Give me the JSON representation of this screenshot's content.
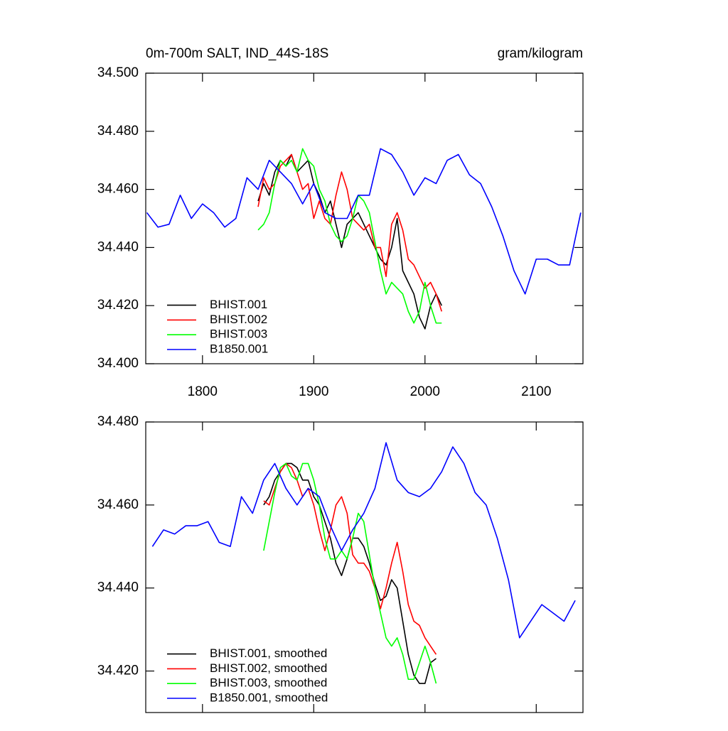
{
  "chart_data": [
    {
      "type": "line",
      "title": "0m-700m SALT, IND_44S-18S",
      "units": "gram/kilogram",
      "xlim": [
        1749,
        2142
      ],
      "xticks": [
        1800,
        1900,
        2000,
        2100
      ],
      "show_xtick_labels": true,
      "ylim": [
        34.4,
        34.5
      ],
      "yticks": [
        {
          "value": 34.4,
          "label": "34.400"
        },
        {
          "value": 34.42,
          "label": "34.420"
        },
        {
          "value": 34.44,
          "label": "34.440"
        },
        {
          "value": 34.46,
          "label": "34.460"
        },
        {
          "value": 34.48,
          "label": "34.480"
        },
        {
          "value": 34.5,
          "label": "34.500"
        }
      ],
      "legend": "bottom left",
      "series": [
        {
          "name": "BHIST.001",
          "color": "#000000",
          "x": [
            1850,
            1855,
            1860,
            1865,
            1870,
            1875,
            1880,
            1885,
            1890,
            1895,
            1900,
            1905,
            1910,
            1915,
            1920,
            1925,
            1930,
            1935,
            1940,
            1945,
            1950,
            1955,
            1960,
            1965,
            1970,
            1975,
            1980,
            1985,
            1990,
            1995,
            2000,
            2005,
            2010,
            2015
          ],
          "values": [
            34.456,
            34.462,
            34.458,
            34.466,
            34.47,
            34.468,
            34.472,
            34.466,
            34.468,
            34.47,
            34.462,
            34.458,
            34.452,
            34.456,
            34.448,
            34.44,
            34.448,
            34.45,
            34.452,
            34.448,
            34.444,
            34.44,
            34.436,
            34.434,
            34.44,
            34.45,
            34.432,
            34.428,
            34.424,
            34.416,
            34.412,
            34.42,
            34.424,
            34.42
          ]
        },
        {
          "name": "BHIST.002",
          "color": "#ff0000",
          "x": [
            1850,
            1855,
            1860,
            1865,
            1870,
            1875,
            1880,
            1885,
            1890,
            1895,
            1900,
            1905,
            1910,
            1915,
            1920,
            1925,
            1930,
            1935,
            1940,
            1945,
            1950,
            1955,
            1960,
            1965,
            1970,
            1975,
            1980,
            1985,
            1990,
            1995,
            2000,
            2005,
            2010,
            2015
          ],
          "values": [
            34.454,
            34.464,
            34.46,
            34.462,
            34.468,
            34.47,
            34.472,
            34.466,
            34.46,
            34.462,
            34.45,
            34.456,
            34.45,
            34.448,
            34.458,
            34.466,
            34.46,
            34.45,
            34.448,
            34.446,
            34.448,
            34.44,
            34.44,
            34.43,
            34.448,
            34.452,
            34.446,
            34.436,
            34.434,
            34.43,
            34.426,
            34.428,
            34.424,
            34.418
          ]
        },
        {
          "name": "BHIST.003",
          "color": "#00ff00",
          "x": [
            1850,
            1855,
            1860,
            1865,
            1870,
            1875,
            1880,
            1885,
            1890,
            1895,
            1900,
            1905,
            1910,
            1915,
            1920,
            1925,
            1930,
            1935,
            1940,
            1945,
            1950,
            1955,
            1960,
            1965,
            1970,
            1975,
            1980,
            1985,
            1990,
            1995,
            2000,
            2005,
            2010,
            2015
          ],
          "values": [
            34.446,
            34.448,
            34.452,
            34.462,
            34.47,
            34.468,
            34.47,
            34.466,
            34.474,
            34.47,
            34.468,
            34.46,
            34.456,
            34.448,
            34.444,
            34.442,
            34.444,
            34.45,
            34.458,
            34.456,
            34.452,
            34.442,
            34.432,
            34.424,
            34.428,
            34.426,
            34.424,
            34.418,
            34.414,
            34.418,
            34.428,
            34.42,
            34.414,
            34.414
          ]
        },
        {
          "name": "B1850.001",
          "color": "#0000ff",
          "x": [
            1750,
            1760,
            1770,
            1780,
            1790,
            1800,
            1810,
            1820,
            1830,
            1840,
            1850,
            1860,
            1870,
            1880,
            1890,
            1900,
            1910,
            1920,
            1930,
            1940,
            1950,
            1960,
            1970,
            1980,
            1990,
            2000,
            2010,
            2020,
            2030,
            2040,
            2050,
            2060,
            2070,
            2080,
            2090,
            2100,
            2110,
            2120,
            2130,
            2140
          ],
          "values": [
            34.452,
            34.447,
            34.448,
            34.458,
            34.45,
            34.455,
            34.452,
            34.447,
            34.45,
            34.464,
            34.46,
            34.47,
            34.466,
            34.462,
            34.455,
            34.462,
            34.452,
            34.45,
            34.45,
            34.458,
            34.458,
            34.474,
            34.472,
            34.466,
            34.458,
            34.464,
            34.462,
            34.47,
            34.472,
            34.465,
            34.462,
            34.454,
            34.444,
            34.432,
            34.424,
            34.436,
            34.436,
            34.434,
            34.434,
            34.452
          ]
        }
      ]
    },
    {
      "type": "line",
      "xlim": [
        1749,
        2142
      ],
      "xticks": [
        1800,
        1900,
        2000,
        2100
      ],
      "show_xtick_labels": false,
      "ylim": [
        34.41,
        34.48
      ],
      "yticks": [
        {
          "value": 34.42,
          "label": "34.420"
        },
        {
          "value": 34.44,
          "label": "34.440"
        },
        {
          "value": 34.46,
          "label": "34.460"
        },
        {
          "value": 34.48,
          "label": "34.480"
        }
      ],
      "legend": "bottom left",
      "series": [
        {
          "name": "BHIST.001, smoothed",
          "color": "#000000",
          "x": [
            1855,
            1860,
            1865,
            1870,
            1875,
            1880,
            1885,
            1890,
            1895,
            1900,
            1905,
            1910,
            1915,
            1920,
            1925,
            1930,
            1935,
            1940,
            1945,
            1950,
            1955,
            1960,
            1965,
            1970,
            1975,
            1980,
            1985,
            1990,
            1995,
            2000,
            2005,
            2010
          ],
          "values": [
            34.46,
            34.462,
            34.466,
            34.468,
            34.47,
            34.47,
            34.469,
            34.466,
            34.466,
            34.462,
            34.46,
            34.456,
            34.452,
            34.446,
            34.443,
            34.447,
            34.452,
            34.452,
            34.45,
            34.446,
            34.441,
            34.437,
            34.438,
            34.442,
            34.44,
            34.432,
            34.424,
            34.419,
            34.417,
            34.417,
            34.422,
            34.423
          ]
        },
        {
          "name": "BHIST.002, smoothed",
          "color": "#ff0000",
          "x": [
            1855,
            1860,
            1865,
            1870,
            1875,
            1880,
            1885,
            1890,
            1895,
            1900,
            1905,
            1910,
            1915,
            1920,
            1925,
            1930,
            1935,
            1940,
            1945,
            1950,
            1955,
            1960,
            1965,
            1970,
            1975,
            1980,
            1985,
            1990,
            1995,
            2000,
            2005,
            2010
          ],
          "values": [
            34.461,
            34.46,
            34.464,
            34.468,
            34.47,
            34.469,
            34.466,
            34.462,
            34.464,
            34.46,
            34.454,
            34.449,
            34.454,
            34.46,
            34.462,
            34.458,
            34.448,
            34.446,
            34.446,
            34.444,
            34.44,
            34.435,
            34.44,
            34.446,
            34.451,
            34.444,
            34.436,
            34.432,
            34.431,
            34.428,
            34.426,
            34.424
          ]
        },
        {
          "name": "BHIST.003, smoothed",
          "color": "#00ff00",
          "x": [
            1855,
            1860,
            1865,
            1870,
            1875,
            1880,
            1885,
            1890,
            1895,
            1900,
            1905,
            1910,
            1915,
            1920,
            1925,
            1930,
            1935,
            1940,
            1945,
            1950,
            1955,
            1960,
            1965,
            1970,
            1975,
            1980,
            1985,
            1990,
            1995,
            2000,
            2005,
            2010
          ],
          "values": [
            34.449,
            34.456,
            34.463,
            34.469,
            34.47,
            34.467,
            34.466,
            34.47,
            34.47,
            34.466,
            34.46,
            34.452,
            34.447,
            34.447,
            34.449,
            34.447,
            34.452,
            34.458,
            34.456,
            34.448,
            34.44,
            34.434,
            34.428,
            34.426,
            34.428,
            34.424,
            34.418,
            34.418,
            34.422,
            34.426,
            34.422,
            34.417
          ]
        },
        {
          "name": "B1850.001, smoothed",
          "color": "#0000ff",
          "x": [
            1755,
            1765,
            1775,
            1785,
            1795,
            1805,
            1815,
            1825,
            1835,
            1845,
            1855,
            1865,
            1875,
            1885,
            1895,
            1905,
            1915,
            1925,
            1935,
            1945,
            1955,
            1965,
            1975,
            1985,
            1995,
            2005,
            2015,
            2025,
            2035,
            2045,
            2055,
            2065,
            2075,
            2085,
            2095,
            2105,
            2115,
            2125,
            2135
          ],
          "values": [
            34.45,
            34.454,
            34.453,
            34.455,
            34.455,
            34.456,
            34.451,
            34.45,
            34.462,
            34.458,
            34.466,
            34.47,
            34.464,
            34.46,
            34.464,
            34.462,
            34.455,
            34.449,
            34.454,
            34.458,
            34.464,
            34.475,
            34.466,
            34.463,
            34.462,
            34.464,
            34.468,
            34.474,
            34.47,
            34.463,
            34.46,
            34.452,
            34.442,
            34.428,
            34.432,
            34.436,
            34.434,
            34.432,
            34.437
          ]
        }
      ]
    }
  ]
}
